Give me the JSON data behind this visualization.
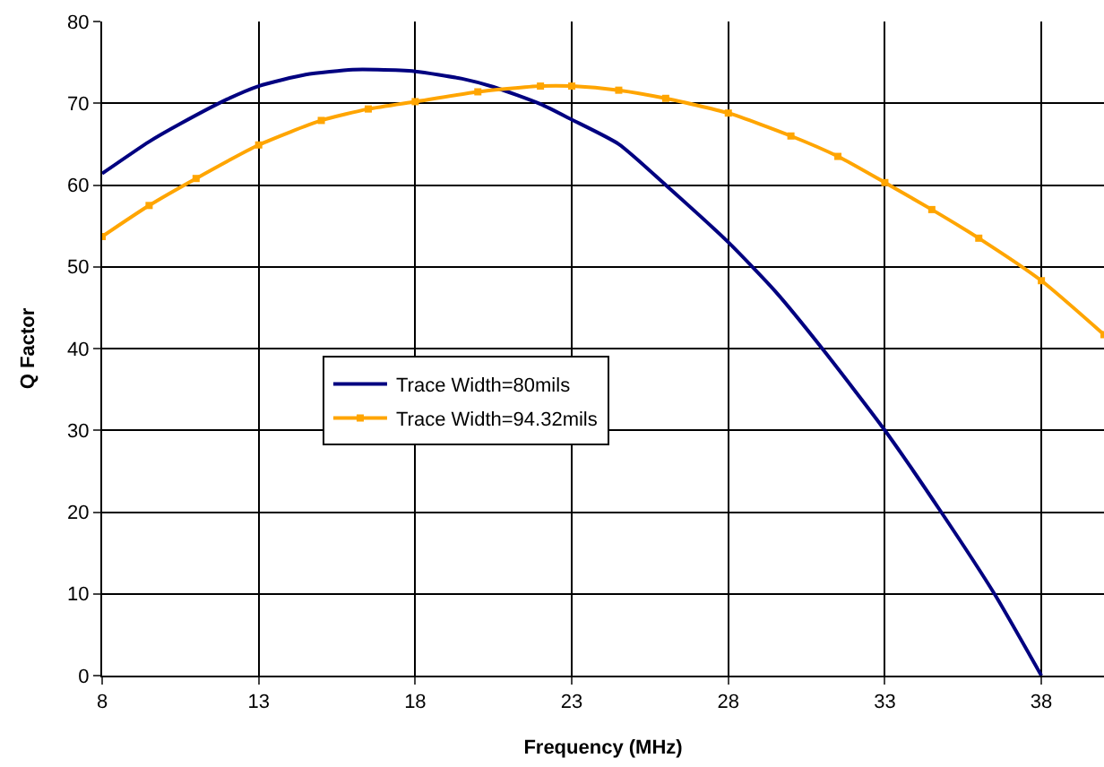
{
  "chart_data": {
    "type": "line",
    "xlabel": "Frequency (MHz)",
    "ylabel": "Q Factor",
    "xlim": [
      8,
      40
    ],
    "xticks": [
      8,
      13,
      18,
      23,
      28,
      33,
      38
    ],
    "ylim": [
      0,
      80
    ],
    "yticks": [
      0,
      10,
      20,
      30,
      40,
      50,
      60,
      70,
      80
    ],
    "grid": true,
    "legend": "center left",
    "series": [
      {
        "name": "Trace Width=80mils",
        "color": "#000080",
        "marker": "none",
        "x": [
          8,
          9.5,
          10.5,
          12,
          13,
          14.5,
          16,
          16.8,
          18,
          19.5,
          20.5,
          22,
          23,
          24.5,
          26,
          28,
          29.5,
          31,
          33,
          34.8,
          36.5,
          38
        ],
        "values": [
          61.4,
          65.3,
          67.5,
          70.5,
          72.1,
          73.5,
          74.1,
          74.1,
          73.9,
          73,
          72,
          69.9,
          68,
          65,
          60,
          53,
          47,
          40,
          30,
          20,
          10,
          0
        ]
      },
      {
        "name": "Trace Width=94.32mils",
        "color": "#ffa500",
        "marker": "square",
        "x": [
          8,
          9.5,
          11,
          13,
          15,
          16.5,
          18,
          20,
          22,
          23,
          24.5,
          26,
          28,
          30,
          31.5,
          33,
          34.5,
          36,
          38,
          40
        ],
        "values": [
          53.7,
          57.5,
          60.8,
          64.9,
          67.9,
          69.3,
          70.2,
          71.4,
          72.1,
          72.1,
          71.6,
          70.6,
          68.8,
          66,
          63.5,
          60.3,
          57,
          53.5,
          48.3,
          41.7
        ]
      }
    ]
  }
}
